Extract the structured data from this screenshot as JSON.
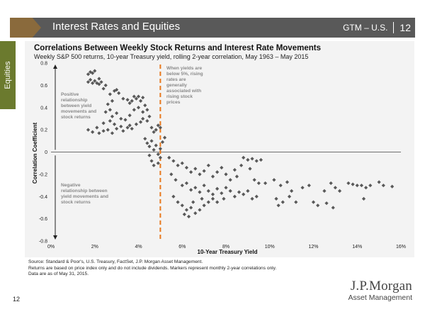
{
  "header": {
    "title": "Interest Rates and Equities",
    "region": "GTM – U.S.",
    "page": "12"
  },
  "side_tab": "Equities",
  "colors": {
    "header": "#595959",
    "accent": "#8a6a3c",
    "tab": "#6b7a2e",
    "marker": "#595959",
    "threshold_line": "#e8791e"
  },
  "chart_data": {
    "type": "scatter",
    "title": "Correlations Between Weekly Stock Returns and Interest Rate Movements",
    "subtitle": "Weekly S&P 500 returns, 10-year Treasury yield, rolling 2-year correlation, May 1963 – May 2015",
    "xlabel": "10-Year Treasury Yield",
    "ylabel": "Correlation Coefficient",
    "xlim": [
      0,
      16
    ],
    "ylim": [
      -0.8,
      0.8
    ],
    "x_ticks": [
      "0%",
      "2%",
      "4%",
      "6%",
      "8%",
      "10%",
      "12%",
      "14%",
      "16%"
    ],
    "y_ticks": [
      "0.8",
      "0.6",
      "0.4",
      "0.2",
      "0",
      "-0.2",
      "-0.4",
      "-0.6",
      "-0.8"
    ],
    "threshold_x": 5,
    "annotations": {
      "threshold": "When yields are below 5%, rising rates are generally associated with rising stock prices",
      "positive": "Positive relationship between yield movements and stock returns",
      "negative": "Negative relationship between yield movements and stock returns"
    },
    "series": [
      {
        "points": [
          [
            1.7,
            0.7
          ],
          [
            1.8,
            0.72
          ],
          [
            1.9,
            0.71
          ],
          [
            2.0,
            0.73
          ],
          [
            1.7,
            0.63
          ],
          [
            1.8,
            0.65
          ],
          [
            1.9,
            0.62
          ],
          [
            2.0,
            0.64
          ],
          [
            2.1,
            0.62
          ],
          [
            2.2,
            0.61
          ],
          [
            2.3,
            0.63
          ],
          [
            2.4,
            0.57
          ],
          [
            2.5,
            0.6
          ],
          [
            2.2,
            0.66
          ],
          [
            2.7,
            0.52
          ],
          [
            2.9,
            0.55
          ],
          [
            3.1,
            0.53
          ],
          [
            3.0,
            0.56
          ],
          [
            2.8,
            0.46
          ],
          [
            2.6,
            0.43
          ],
          [
            2.7,
            0.38
          ],
          [
            3.3,
            0.48
          ],
          [
            3.5,
            0.47
          ],
          [
            3.6,
            0.44
          ],
          [
            3.7,
            0.46
          ],
          [
            3.8,
            0.5
          ],
          [
            3.9,
            0.48
          ],
          [
            4.0,
            0.5
          ],
          [
            4.1,
            0.46
          ],
          [
            4.2,
            0.49
          ],
          [
            2.5,
            0.36
          ],
          [
            2.8,
            0.32
          ],
          [
            3.0,
            0.35
          ],
          [
            3.2,
            0.3
          ],
          [
            2.7,
            0.28
          ],
          [
            2.4,
            0.26
          ],
          [
            2.9,
            0.25
          ],
          [
            3.4,
            0.29
          ],
          [
            3.6,
            0.33
          ],
          [
            3.8,
            0.38
          ],
          [
            4.0,
            0.4
          ],
          [
            4.2,
            0.36
          ],
          [
            4.3,
            0.42
          ],
          [
            4.4,
            0.38
          ],
          [
            1.7,
            0.2
          ],
          [
            1.9,
            0.18
          ],
          [
            2.1,
            0.22
          ],
          [
            2.2,
            0.17
          ],
          [
            2.4,
            0.19
          ],
          [
            2.6,
            0.2
          ],
          [
            2.8,
            0.17
          ],
          [
            3.0,
            0.21
          ],
          [
            3.2,
            0.23
          ],
          [
            3.3,
            0.19
          ],
          [
            3.5,
            0.22
          ],
          [
            3.6,
            0.24
          ],
          [
            3.7,
            0.21
          ],
          [
            3.9,
            0.25
          ],
          [
            4.1,
            0.27
          ],
          [
            4.2,
            0.3
          ],
          [
            4.5,
            0.32
          ],
          [
            4.4,
            0.28
          ],
          [
            4.6,
            0.22
          ],
          [
            4.7,
            0.18
          ],
          [
            4.8,
            0.2
          ],
          [
            4.9,
            0.24
          ],
          [
            5.0,
            0.22
          ],
          [
            4.3,
            0.12
          ],
          [
            4.4,
            0.08
          ],
          [
            4.5,
            0.05
          ],
          [
            4.6,
            0.1
          ],
          [
            4.7,
            0.02
          ],
          [
            4.8,
            0.06
          ],
          [
            4.9,
            -0.02
          ],
          [
            5.0,
            0.03
          ],
          [
            5.1,
            0.09
          ],
          [
            5.2,
            0.13
          ],
          [
            4.5,
            -0.03
          ],
          [
            4.6,
            -0.08
          ],
          [
            4.7,
            -0.12
          ],
          [
            4.9,
            -0.1
          ],
          [
            5.0,
            -0.05
          ],
          [
            5.4,
            -0.05
          ],
          [
            5.6,
            -0.08
          ],
          [
            5.8,
            -0.12
          ],
          [
            6.0,
            -0.1
          ],
          [
            6.2,
            -0.14
          ],
          [
            6.4,
            -0.18
          ],
          [
            6.6,
            -0.15
          ],
          [
            6.8,
            -0.2
          ],
          [
            7.0,
            -0.17
          ],
          [
            7.2,
            -0.12
          ],
          [
            7.4,
            -0.22
          ],
          [
            7.6,
            -0.18
          ],
          [
            7.8,
            -0.14
          ],
          [
            8.0,
            -0.2
          ],
          [
            8.2,
            -0.25
          ],
          [
            8.4,
            -0.16
          ],
          [
            8.5,
            -0.22
          ],
          [
            5.5,
            -0.2
          ],
          [
            5.7,
            -0.25
          ],
          [
            6.0,
            -0.3
          ],
          [
            6.2,
            -0.28
          ],
          [
            6.4,
            -0.34
          ],
          [
            6.6,
            -0.32
          ],
          [
            6.8,
            -0.36
          ],
          [
            7.0,
            -0.3
          ],
          [
            7.2,
            -0.35
          ],
          [
            7.4,
            -0.38
          ],
          [
            7.6,
            -0.33
          ],
          [
            7.8,
            -0.37
          ],
          [
            8.0,
            -0.32
          ],
          [
            8.2,
            -0.35
          ],
          [
            8.4,
            -0.4
          ],
          [
            8.6,
            -0.36
          ],
          [
            8.8,
            -0.38
          ],
          [
            9.0,
            -0.35
          ],
          [
            9.2,
            -0.42
          ],
          [
            9.4,
            -0.4
          ],
          [
            5.6,
            -0.4
          ],
          [
            5.8,
            -0.45
          ],
          [
            6.0,
            -0.48
          ],
          [
            6.2,
            -0.52
          ],
          [
            6.4,
            -0.5
          ],
          [
            6.6,
            -0.55
          ],
          [
            6.8,
            -0.52
          ],
          [
            7.0,
            -0.48
          ],
          [
            7.2,
            -0.45
          ],
          [
            7.4,
            -0.42
          ],
          [
            6.1,
            -0.56
          ],
          [
            6.3,
            -0.58
          ],
          [
            6.5,
            -0.45
          ],
          [
            6.9,
            -0.42
          ],
          [
            7.6,
            -0.45
          ],
          [
            7.9,
            -0.42
          ],
          [
            8.8,
            -0.05
          ],
          [
            9.0,
            -0.07
          ],
          [
            9.2,
            -0.06
          ],
          [
            9.4,
            -0.08
          ],
          [
            9.6,
            -0.07
          ],
          [
            9.1,
            -0.15
          ],
          [
            8.7,
            -0.12
          ],
          [
            9.3,
            -0.25
          ],
          [
            9.5,
            -0.28
          ],
          [
            9.8,
            -0.28
          ],
          [
            10.2,
            -0.25
          ],
          [
            10.5,
            -0.3
          ],
          [
            10.8,
            -0.27
          ],
          [
            10.3,
            -0.42
          ],
          [
            10.6,
            -0.45
          ],
          [
            10.9,
            -0.4
          ],
          [
            10.4,
            -0.48
          ],
          [
            11.0,
            -0.35
          ],
          [
            11.2,
            -0.45
          ],
          [
            11.5,
            -0.32
          ],
          [
            11.8,
            -0.3
          ],
          [
            12.0,
            -0.45
          ],
          [
            12.2,
            -0.48
          ],
          [
            12.5,
            -0.35
          ],
          [
            12.8,
            -0.28
          ],
          [
            13.0,
            -0.32
          ],
          [
            12.6,
            -0.46
          ],
          [
            13.2,
            -0.35
          ],
          [
            12.9,
            -0.5
          ],
          [
            13.6,
            -0.28
          ],
          [
            13.8,
            -0.29
          ],
          [
            14.0,
            -0.3
          ],
          [
            14.2,
            -0.3
          ],
          [
            14.4,
            -0.32
          ],
          [
            14.6,
            -0.3
          ],
          [
            14.3,
            -0.42
          ],
          [
            15.0,
            -0.27
          ],
          [
            15.2,
            -0.3
          ],
          [
            15.6,
            -0.31
          ]
        ]
      }
    ]
  },
  "footnotes": [
    "Source: Standard & Poor's, U.S. Treasury, FactSet, J.P. Morgan Asset Management.",
    "Returns are based on price index only and do not include dividends. Markers represent monthly 2-year correlations only.",
    "Data are as of May 31, 2015."
  ],
  "page_number": "12",
  "logo": {
    "main": "J.P.Morgan",
    "sub": "Asset Management"
  }
}
